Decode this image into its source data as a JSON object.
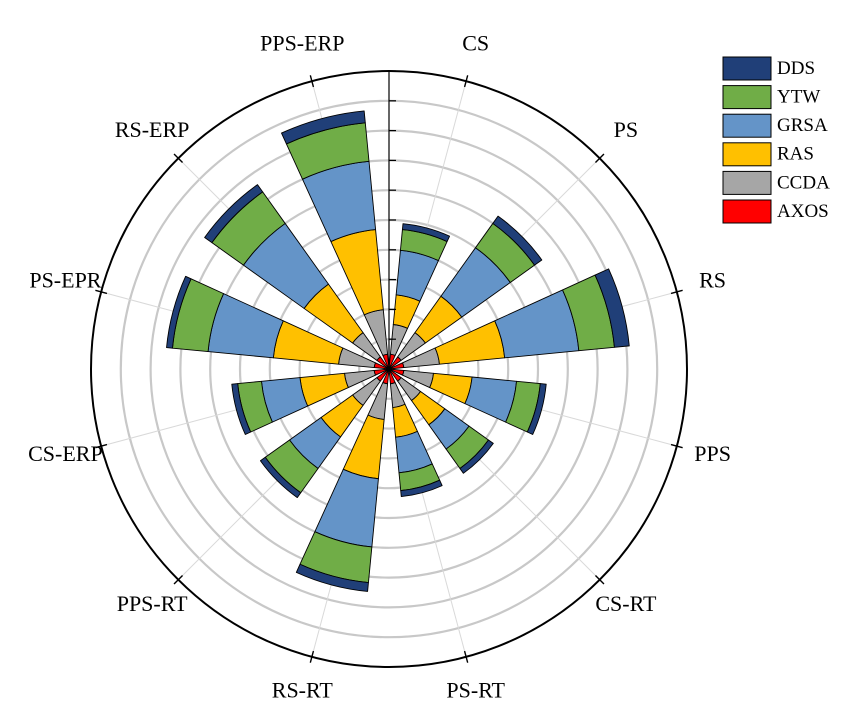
{
  "chart_data": {
    "type": "stacked-polar-bar",
    "title": "",
    "categories": [
      "CS",
      "PS",
      "RS",
      "PPS",
      "CS-RT",
      "PS-RT",
      "RS-RT",
      "PPS-RT",
      "CS-ERP",
      "PS-EPR",
      "RS-ERP",
      "PPS-ERP"
    ],
    "series": [
      {
        "name": "AXOS",
        "color": "#ff0000",
        "values": [
          5,
          5,
          5,
          5,
          5,
          5,
          5,
          5,
          5,
          5,
          5,
          5
        ]
      },
      {
        "name": "CCDA",
        "color": "#a6a6a6",
        "values": [
          10,
          10,
          12,
          10,
          8,
          8,
          12,
          10,
          10,
          12,
          10,
          15
        ]
      },
      {
        "name": "RAS",
        "color": "#ffc000",
        "values": [
          10,
          15,
          22,
          13,
          10,
          10,
          20,
          13,
          15,
          22,
          20,
          27
        ]
      },
      {
        "name": "GRSA",
        "color": "#6494c8",
        "values": [
          15,
          20,
          25,
          15,
          10,
          12,
          23,
          13,
          13,
          22,
          25,
          23
        ]
      },
      {
        "name": "YTW",
        "color": "#70ad47",
        "values": [
          7,
          10,
          12,
          8,
          8,
          6,
          12,
          10,
          8,
          12,
          13,
          13
        ]
      },
      {
        "name": "DDS",
        "color": "#203f78",
        "values": [
          2,
          3,
          5,
          2,
          2,
          2,
          3,
          2,
          2,
          2,
          3,
          4
        ]
      }
    ],
    "r_range": [
      0,
      100
    ],
    "grid": true,
    "legend_position": "top-right"
  }
}
